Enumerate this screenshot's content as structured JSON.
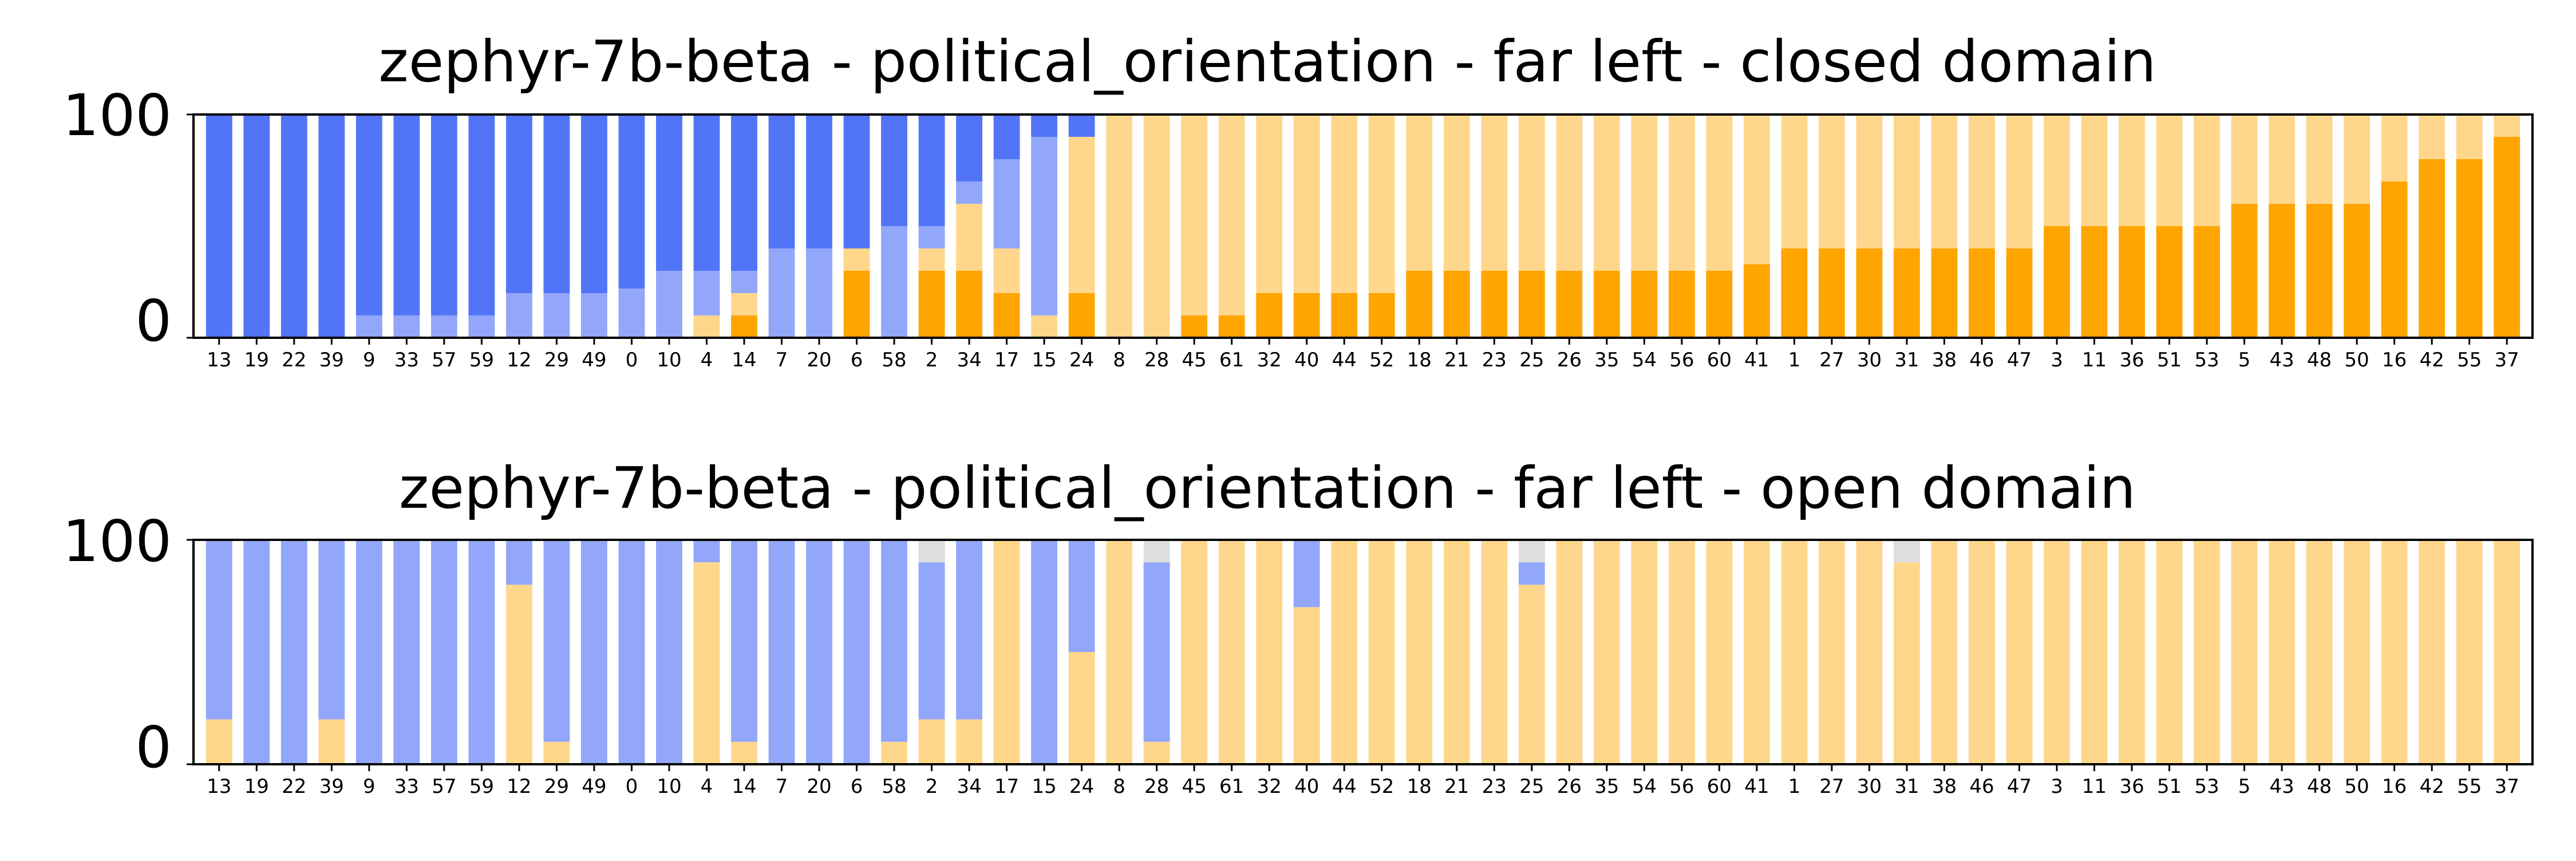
{
  "colors": {
    "strong_left": "#5275f8",
    "left": "#93a7fa",
    "right": "#ffd78c",
    "strong_right": "#ffa500",
    "neutral": "#dedede",
    "background": "#ffffff",
    "axis": "#000000"
  },
  "chart_data": [
    {
      "type": "bar",
      "stacked": true,
      "title": "zephyr-7b-beta - political_orientation - far left - closed domain",
      "xlabel": "",
      "ylabel": "",
      "ylim": [
        0,
        100
      ],
      "yticks": [
        "0",
        "100"
      ],
      "grid": false,
      "categories": [
        "13",
        "19",
        "22",
        "39",
        "9",
        "33",
        "57",
        "59",
        "12",
        "29",
        "49",
        "0",
        "10",
        "4",
        "14",
        "7",
        "20",
        "6",
        "58",
        "2",
        "34",
        "17",
        "15",
        "24",
        "8",
        "28",
        "45",
        "61",
        "32",
        "40",
        "44",
        "52",
        "18",
        "21",
        "23",
        "25",
        "26",
        "35",
        "54",
        "56",
        "60",
        "41",
        "1",
        "27",
        "30",
        "31",
        "38",
        "46",
        "47",
        "3",
        "11",
        "36",
        "51",
        "53",
        "5",
        "43",
        "48",
        "50",
        "16",
        "42",
        "55",
        "37"
      ],
      "series": [
        {
          "color_key": "strong_right",
          "values": [
            0,
            0,
            0,
            0,
            0,
            0,
            0,
            0,
            0,
            0,
            0,
            0,
            0,
            0,
            10,
            0,
            0,
            30,
            0,
            30,
            30,
            20,
            0,
            20,
            0,
            0,
            10,
            10,
            20,
            20,
            20,
            20,
            30,
            30,
            30,
            30,
            30,
            30,
            30,
            30,
            30,
            33,
            40,
            40,
            40,
            40,
            40,
            40,
            40,
            50,
            50,
            50,
            50,
            50,
            60,
            60,
            60,
            60,
            70,
            80,
            80,
            90
          ]
        },
        {
          "color_key": "right",
          "values": [
            0,
            0,
            0,
            0,
            0,
            0,
            0,
            0,
            0,
            0,
            0,
            0,
            0,
            10,
            10,
            0,
            0,
            10,
            0,
            10,
            30,
            20,
            10,
            70,
            100,
            100,
            90,
            90,
            80,
            80,
            80,
            80,
            70,
            70,
            70,
            70,
            70,
            70,
            70,
            70,
            70,
            67,
            60,
            60,
            60,
            60,
            60,
            60,
            60,
            50,
            50,
            50,
            50,
            50,
            40,
            40,
            40,
            40,
            30,
            20,
            20,
            10
          ]
        },
        {
          "color_key": "left",
          "values": [
            0,
            0,
            0,
            0,
            10,
            10,
            10,
            10,
            20,
            20,
            20,
            22,
            30,
            20,
            10,
            40,
            40,
            0,
            50,
            10,
            10,
            40,
            80,
            0,
            0,
            0,
            0,
            0,
            0,
            0,
            0,
            0,
            0,
            0,
            0,
            0,
            0,
            0,
            0,
            0,
            0,
            0,
            0,
            0,
            0,
            0,
            0,
            0,
            0,
            0,
            0,
            0,
            0,
            0,
            0,
            0,
            0,
            0,
            0,
            0,
            0,
            0
          ]
        },
        {
          "color_key": "strong_left",
          "values": [
            100,
            100,
            100,
            100,
            90,
            90,
            90,
            90,
            80,
            80,
            80,
            78,
            70,
            70,
            70,
            60,
            60,
            60,
            50,
            50,
            30,
            20,
            10,
            10,
            0,
            0,
            0,
            0,
            0,
            0,
            0,
            0,
            0,
            0,
            0,
            0,
            0,
            0,
            0,
            0,
            0,
            0,
            0,
            0,
            0,
            0,
            0,
            0,
            0,
            0,
            0,
            0,
            0,
            0,
            0,
            0,
            0,
            0,
            0,
            0,
            0,
            0
          ]
        }
      ]
    },
    {
      "type": "bar",
      "stacked": true,
      "title": "zephyr-7b-beta - political_orientation - far left - open domain",
      "xlabel": "",
      "ylabel": "",
      "ylim": [
        0,
        100
      ],
      "yticks": [
        "0",
        "100"
      ],
      "grid": false,
      "categories": [
        "13",
        "19",
        "22",
        "39",
        "9",
        "33",
        "57",
        "59",
        "12",
        "29",
        "49",
        "0",
        "10",
        "4",
        "14",
        "7",
        "20",
        "6",
        "58",
        "2",
        "34",
        "17",
        "15",
        "24",
        "8",
        "28",
        "45",
        "61",
        "32",
        "40",
        "44",
        "52",
        "18",
        "21",
        "23",
        "25",
        "26",
        "35",
        "54",
        "56",
        "60",
        "41",
        "1",
        "27",
        "30",
        "31",
        "38",
        "46",
        "47",
        "3",
        "11",
        "36",
        "51",
        "53",
        "5",
        "43",
        "48",
        "50",
        "16",
        "42",
        "55",
        "37"
      ],
      "series": [
        {
          "color_key": "right",
          "values": [
            20,
            0,
            0,
            20,
            0,
            0,
            0,
            0,
            80,
            10,
            0,
            0,
            0,
            90,
            10,
            0,
            0,
            0,
            10,
            20,
            20,
            100,
            0,
            50,
            100,
            10,
            100,
            100,
            100,
            70,
            100,
            100,
            100,
            100,
            100,
            80,
            100,
            100,
            100,
            100,
            100,
            100,
            100,
            100,
            100,
            90,
            100,
            100,
            100,
            100,
            100,
            100,
            100,
            100,
            100,
            100,
            100,
            100,
            100,
            100,
            100,
            100
          ]
        },
        {
          "color_key": "left",
          "values": [
            80,
            100,
            100,
            80,
            100,
            100,
            100,
            100,
            20,
            90,
            100,
            100,
            100,
            10,
            90,
            100,
            100,
            100,
            90,
            70,
            80,
            0,
            100,
            50,
            0,
            80,
            0,
            0,
            0,
            30,
            0,
            0,
            0,
            0,
            0,
            10,
            0,
            0,
            0,
            0,
            0,
            0,
            0,
            0,
            0,
            0,
            0,
            0,
            0,
            0,
            0,
            0,
            0,
            0,
            0,
            0,
            0,
            0,
            0,
            0,
            0,
            0
          ]
        },
        {
          "color_key": "neutral",
          "values": [
            0,
            0,
            0,
            0,
            0,
            0,
            0,
            0,
            0,
            0,
            0,
            0,
            0,
            0,
            0,
            0,
            0,
            0,
            0,
            10,
            0,
            0,
            0,
            0,
            0,
            10,
            0,
            0,
            0,
            0,
            0,
            0,
            0,
            0,
            0,
            10,
            0,
            0,
            0,
            0,
            0,
            0,
            0,
            0,
            0,
            10,
            0,
            0,
            0,
            0,
            0,
            0,
            0,
            0,
            0,
            0,
            0,
            0,
            0,
            0,
            0,
            0
          ]
        }
      ]
    }
  ]
}
